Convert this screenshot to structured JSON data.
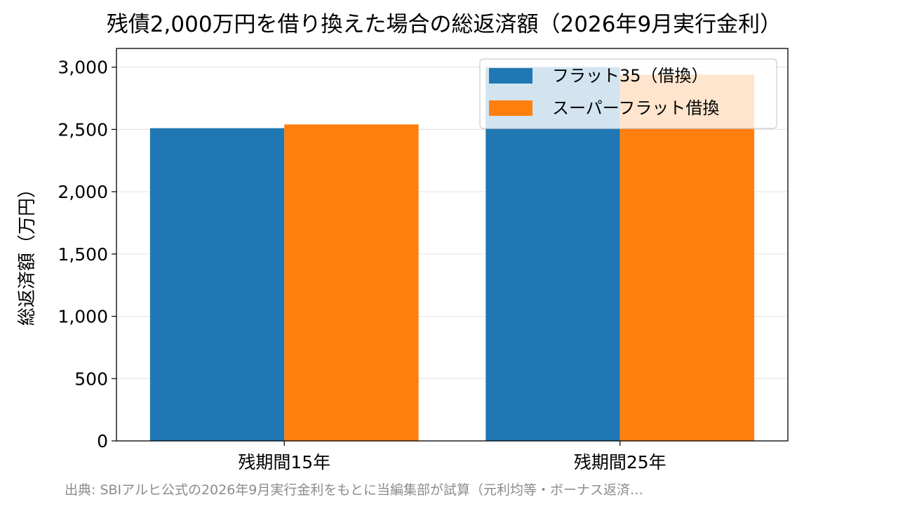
{
  "chart_data": {
    "type": "bar",
    "title": "残債2,000万円を借り換えた場合の総返済額（2026年9月実行金利）",
    "xlabel": "",
    "ylabel": "総返済額（万円）",
    "categories": [
      "残期間15年",
      "残期間25年"
    ],
    "series": [
      {
        "name": "フラット35（借換）",
        "values": [
          2510,
          3000
        ],
        "color": "#1f77b4"
      },
      {
        "name": "スーパーフラット借換",
        "values": [
          2540,
          2940
        ],
        "color": "#ff7f0e"
      }
    ],
    "ylim": [
      0,
      3150
    ],
    "yticks": [
      0,
      500,
      1000,
      1500,
      2000,
      2500,
      3000
    ],
    "ytick_labels": [
      "0",
      "500",
      "1,000",
      "1,500",
      "2,000",
      "2,500",
      "3,000"
    ],
    "grid": "y",
    "legend_position": "top-right",
    "source_note": "出典: SBIアルヒ公式の2026年9月実行金利をもとに当編集部が試算（元利均等・ボーナス返済…"
  }
}
